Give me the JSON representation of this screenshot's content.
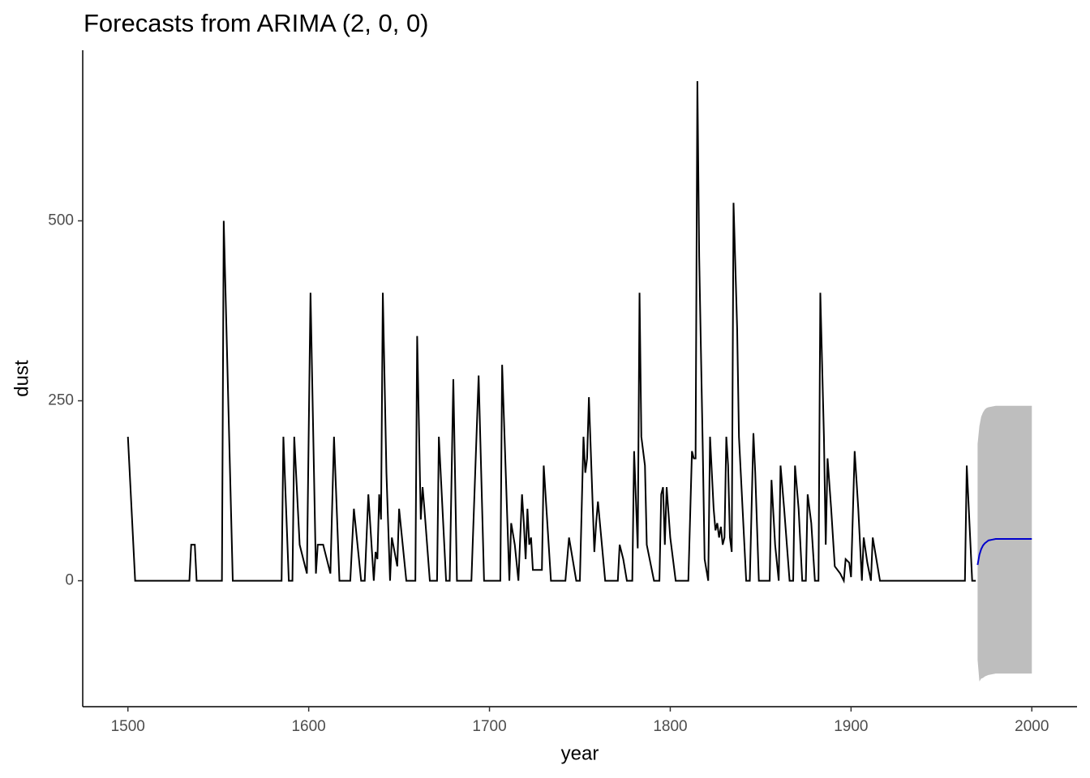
{
  "chart_data": {
    "type": "line",
    "title": "Forecasts from ARIMA (2, 0, 0)",
    "xlabel": "year",
    "ylabel": "dust",
    "xlim": [
      1475,
      2025
    ],
    "ylim": [
      -175,
      737
    ],
    "xticks": [
      1500,
      1600,
      1700,
      1800,
      1900,
      2000
    ],
    "yticks": [
      0,
      250,
      500
    ],
    "grid": false,
    "series": [
      {
        "color": "#000000",
        "x": [
          1500,
          1504,
          1534,
          1535,
          1537,
          1538,
          1552,
          1553,
          1558,
          1585,
          1586,
          1589,
          1591,
          1592,
          1595,
          1599,
          1601,
          1604,
          1605,
          1608,
          1612,
          1614,
          1617,
          1623,
          1625,
          1629,
          1631,
          1633,
          1636,
          1637,
          1638,
          1639,
          1640,
          1641,
          1643,
          1645,
          1646,
          1649,
          1650,
          1654,
          1659,
          1660,
          1662,
          1663,
          1664,
          1667,
          1671,
          1672,
          1676,
          1678,
          1680,
          1682,
          1690,
          1694,
          1697,
          1706,
          1707,
          1711,
          1712,
          1714,
          1716,
          1718,
          1719,
          1720,
          1721,
          1722,
          1723,
          1724,
          1729,
          1730,
          1734,
          1742,
          1744,
          1746,
          1748,
          1750,
          1752,
          1753,
          1754,
          1755,
          1758,
          1759,
          1760,
          1764,
          1771,
          1772,
          1774,
          1776,
          1779,
          1780,
          1782,
          1783,
          1784,
          1786,
          1787,
          1791,
          1794,
          1795,
          1796,
          1797,
          1798,
          1800,
          1803,
          1810,
          1812,
          1813,
          1814,
          1815,
          1816,
          1818,
          1819,
          1821,
          1822,
          1824,
          1825,
          1826,
          1827,
          1828,
          1829,
          1830,
          1831,
          1832,
          1833,
          1834,
          1835,
          1837,
          1838,
          1840,
          1842,
          1844,
          1846,
          1847,
          1849,
          1855,
          1856,
          1858,
          1860,
          1861,
          1863,
          1866,
          1868,
          1869,
          1871,
          1873,
          1875,
          1876,
          1878,
          1880,
          1882,
          1883,
          1885,
          1886,
          1887,
          1889,
          1891,
          1894,
          1896,
          1897,
          1899,
          1900,
          1902,
          1904,
          1906,
          1907,
          1909,
          1911,
          1912,
          1916,
          1963,
          1964,
          1967,
          1969
        ],
        "values": [
          200,
          0,
          0,
          50,
          50,
          0,
          0,
          500,
          0,
          0,
          200,
          0,
          0,
          200,
          50,
          10,
          400,
          10,
          50,
          50,
          10,
          200,
          0,
          0,
          100,
          0,
          0,
          120,
          0,
          40,
          30,
          120,
          85,
          400,
          150,
          0,
          60,
          20,
          100,
          0,
          0,
          340,
          85,
          130,
          100,
          0,
          0,
          200,
          0,
          0,
          280,
          0,
          0,
          285,
          0,
          0,
          300,
          0,
          80,
          50,
          0,
          120,
          80,
          30,
          100,
          50,
          60,
          15,
          15,
          160,
          0,
          0,
          60,
          30,
          0,
          0,
          200,
          150,
          170,
          255,
          40,
          80,
          110,
          0,
          0,
          50,
          30,
          0,
          0,
          180,
          45,
          400,
          200,
          160,
          50,
          0,
          0,
          120,
          130,
          50,
          130,
          60,
          0,
          0,
          180,
          170,
          170,
          694,
          450,
          180,
          30,
          0,
          200,
          100,
          70,
          80,
          60,
          75,
          50,
          60,
          200,
          160,
          60,
          40,
          525,
          350,
          200,
          100,
          0,
          0,
          205,
          150,
          0,
          0,
          140,
          50,
          0,
          160,
          100,
          0,
          0,
          160,
          100,
          0,
          0,
          120,
          80,
          0,
          0,
          400,
          200,
          50,
          170,
          100,
          20,
          10,
          0,
          30,
          25,
          5,
          180,
          100,
          0,
          60,
          25,
          0,
          60,
          0,
          0,
          160,
          0,
          0
        ]
      }
    ],
    "forecast": {
      "color": "#0000cc",
      "band_color": "#bebebe",
      "x": [
        1970,
        1971,
        1972,
        1973,
        1974,
        1975,
        1976,
        1978,
        1980,
        1985,
        1990,
        2000
      ],
      "values": [
        22,
        36,
        44,
        49,
        52,
        54,
        56,
        57,
        58,
        58,
        58,
        58
      ],
      "upper": [
        190,
        215,
        228,
        234,
        238,
        240,
        241,
        242,
        243,
        243,
        243,
        243
      ],
      "lower": [
        -110,
        -140,
        -136,
        -135,
        -133,
        -132,
        -131,
        -130,
        -129,
        -129,
        -129,
        -129
      ]
    }
  }
}
